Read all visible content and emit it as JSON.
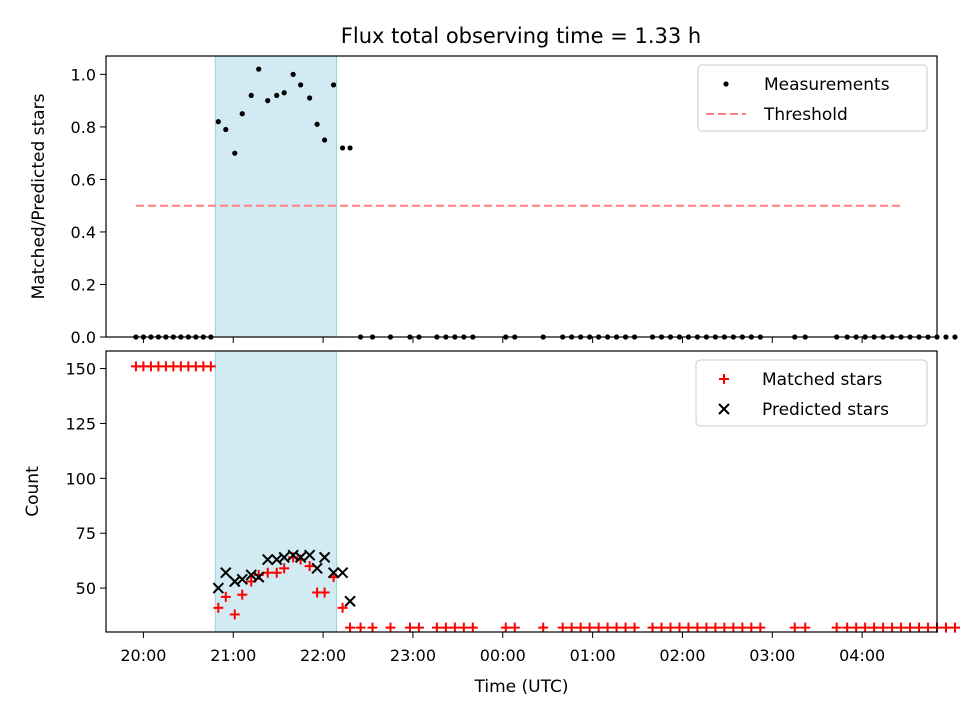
{
  "chart_data": [
    {
      "type": "scatter",
      "title": "Flux total observing time = 1.33 h",
      "xlabel": "",
      "ylabel": "Matched/Predicted stars",
      "ylim": [
        0,
        1.07
      ],
      "xlim": [
        "19:35",
        "04:50"
      ],
      "yticks": [
        "0.0",
        "0.2",
        "0.4",
        "0.6",
        "0.8",
        "1.0"
      ],
      "ytick_values": [
        0,
        0.2,
        0.4,
        0.6,
        0.8,
        1.0
      ],
      "grid": false,
      "legend_position": "top-right",
      "shaded_interval": [
        "20:48",
        "22:09"
      ],
      "shade_color": "#add8e6",
      "series": [
        {
          "name": "Measurements",
          "color": "#000000",
          "marker": "dot",
          "points": [
            [
              "19:55",
              0
            ],
            [
              "20:00",
              0
            ],
            [
              "20:05",
              0
            ],
            [
              "20:10",
              0
            ],
            [
              "20:15",
              0
            ],
            [
              "20:20",
              0
            ],
            [
              "20:25",
              0
            ],
            [
              "20:30",
              0
            ],
            [
              "20:35",
              0
            ],
            [
              "20:40",
              0
            ],
            [
              "20:45",
              0
            ],
            [
              "20:50",
              0.82
            ],
            [
              "20:55",
              0.79
            ],
            [
              "21:01",
              0.7
            ],
            [
              "21:06",
              0.85
            ],
            [
              "21:12",
              0.92
            ],
            [
              "21:17",
              1.02
            ],
            [
              "21:23",
              0.9
            ],
            [
              "21:29",
              0.92
            ],
            [
              "21:34",
              0.93
            ],
            [
              "21:40",
              1.0
            ],
            [
              "21:45",
              0.96
            ],
            [
              "21:51",
              0.91
            ],
            [
              "21:56",
              0.81
            ],
            [
              "22:01",
              0.75
            ],
            [
              "22:07",
              0.96
            ],
            [
              "22:13",
              0.72
            ],
            [
              "22:18",
              0.72
            ],
            [
              "22:25",
              0
            ],
            [
              "22:33",
              0
            ],
            [
              "22:45",
              0
            ],
            [
              "22:58",
              0
            ],
            [
              "23:04",
              0
            ],
            [
              "23:16",
              0
            ],
            [
              "23:22",
              0
            ],
            [
              "23:28",
              0
            ],
            [
              "23:34",
              0
            ],
            [
              "23:40",
              0
            ],
            [
              "24:02",
              0
            ],
            [
              "24:08",
              0
            ],
            [
              "24:27",
              0
            ],
            [
              "24:40",
              0
            ],
            [
              "24:46",
              0
            ],
            [
              "24:52",
              0
            ],
            [
              "24:58",
              0
            ],
            [
              "25:04",
              0
            ],
            [
              "25:10",
              0
            ],
            [
              "25:16",
              0
            ],
            [
              "25:22",
              0
            ],
            [
              "25:28",
              0
            ],
            [
              "25:40",
              0
            ],
            [
              "25:46",
              0
            ],
            [
              "25:52",
              0
            ],
            [
              "25:58",
              0
            ],
            [
              "26:04",
              0
            ],
            [
              "26:10",
              0
            ],
            [
              "26:16",
              0
            ],
            [
              "26:22",
              0
            ],
            [
              "26:28",
              0
            ],
            [
              "26:34",
              0
            ],
            [
              "26:40",
              0
            ],
            [
              "26:46",
              0
            ],
            [
              "26:52",
              0
            ],
            [
              "27:15",
              0
            ],
            [
              "27:22",
              0
            ],
            [
              "27:43",
              0
            ],
            [
              "27:50",
              0
            ],
            [
              "27:56",
              0
            ],
            [
              "28:02",
              0
            ],
            [
              "28:08",
              0
            ],
            [
              "28:14",
              0
            ],
            [
              "28:20",
              0
            ],
            [
              "28:26",
              0
            ],
            [
              "28:32",
              0
            ],
            [
              "28:38",
              0
            ],
            [
              "28:44",
              0
            ],
            [
              "28:50",
              0
            ],
            [
              "28:56",
              0
            ],
            [
              "29:02",
              0
            ],
            [
              "29:08",
              0
            ],
            [
              "29:14",
              0
            ],
            [
              "29:20",
              0
            ],
            [
              "29:26",
              0
            ],
            [
              "29:32",
              0
            ],
            [
              "29:38",
              0
            ],
            [
              "29:44",
              0
            ],
            [
              "29:50",
              0
            ],
            [
              "29:56",
              0
            ],
            [
              "30:03",
              0
            ],
            [
              "30:09",
              0
            ],
            [
              "30:15",
              0
            ],
            [
              "30:21",
              0
            ],
            [
              "30:27",
              0
            ]
          ]
        },
        {
          "name": "Threshold",
          "color": "#ff7f7f",
          "style": "dashed",
          "points": [
            [
              "19:55",
              0.5
            ],
            [
              "28:26",
              0.5
            ]
          ]
        }
      ]
    },
    {
      "type": "scatter",
      "title": "",
      "xlabel": "Time (UTC)",
      "ylabel": "Count",
      "ylim": [
        30,
        158
      ],
      "xlim": [
        "19:35",
        "04:50"
      ],
      "yticks": [
        "50",
        "75",
        "100",
        "125",
        "150"
      ],
      "ytick_values": [
        50,
        75,
        100,
        125,
        150
      ],
      "xticks": [
        "20:00",
        "21:00",
        "22:00",
        "23:00",
        "00:00",
        "01:00",
        "02:00",
        "03:00",
        "04:00"
      ],
      "xtick_values": [
        "20:00",
        "21:00",
        "22:00",
        "23:00",
        "24:00",
        "25:00",
        "26:00",
        "27:00",
        "28:00"
      ],
      "grid": false,
      "legend_position": "top-right",
      "shaded_interval": [
        "20:48",
        "22:09"
      ],
      "series": [
        {
          "name": "Matched stars",
          "color": "#ff0000",
          "marker": "plus",
          "points": [
            [
              "19:55",
              151
            ],
            [
              "20:00",
              151
            ],
            [
              "20:05",
              151
            ],
            [
              "20:10",
              151
            ],
            [
              "20:15",
              151
            ],
            [
              "20:20",
              151
            ],
            [
              "20:25",
              151
            ],
            [
              "20:30",
              151
            ],
            [
              "20:35",
              151
            ],
            [
              "20:40",
              151
            ],
            [
              "20:45",
              151
            ],
            [
              "20:50",
              41
            ],
            [
              "20:55",
              46
            ],
            [
              "21:01",
              38
            ],
            [
              "21:06",
              47
            ],
            [
              "21:12",
              53
            ],
            [
              "21:17",
              56
            ],
            [
              "21:23",
              57
            ],
            [
              "21:29",
              57
            ],
            [
              "21:34",
              59
            ],
            [
              "21:40",
              64
            ],
            [
              "21:45",
              63
            ],
            [
              "21:51",
              60
            ],
            [
              "21:56",
              48
            ],
            [
              "22:01",
              48
            ],
            [
              "22:07",
              55
            ],
            [
              "22:13",
              41
            ],
            [
              "22:18",
              32
            ],
            [
              "22:25",
              32
            ],
            [
              "22:33",
              32
            ],
            [
              "22:45",
              32
            ],
            [
              "22:58",
              32
            ],
            [
              "23:04",
              32
            ],
            [
              "23:16",
              32
            ],
            [
              "23:22",
              32
            ],
            [
              "23:28",
              32
            ],
            [
              "23:34",
              32
            ],
            [
              "23:40",
              32
            ],
            [
              "24:02",
              32
            ],
            [
              "24:08",
              32
            ],
            [
              "24:27",
              32
            ],
            [
              "24:40",
              32
            ],
            [
              "24:46",
              32
            ],
            [
              "24:52",
              32
            ],
            [
              "24:58",
              32
            ],
            [
              "25:04",
              32
            ],
            [
              "25:10",
              32
            ],
            [
              "25:16",
              32
            ],
            [
              "25:22",
              32
            ],
            [
              "25:28",
              32
            ],
            [
              "25:40",
              32
            ],
            [
              "25:46",
              32
            ],
            [
              "25:52",
              32
            ],
            [
              "25:58",
              32
            ],
            [
              "26:04",
              32
            ],
            [
              "26:10",
              32
            ],
            [
              "26:16",
              32
            ],
            [
              "26:22",
              32
            ],
            [
              "26:28",
              32
            ],
            [
              "26:34",
              32
            ],
            [
              "26:40",
              32
            ],
            [
              "26:46",
              32
            ],
            [
              "26:52",
              32
            ],
            [
              "27:15",
              32
            ],
            [
              "27:22",
              32
            ],
            [
              "27:43",
              32
            ],
            [
              "27:50",
              32
            ],
            [
              "27:56",
              32
            ],
            [
              "28:02",
              32
            ],
            [
              "28:08",
              32
            ],
            [
              "28:14",
              32
            ],
            [
              "28:20",
              32
            ],
            [
              "28:26",
              32
            ],
            [
              "28:32",
              32
            ],
            [
              "28:38",
              32
            ],
            [
              "28:44",
              32
            ],
            [
              "28:50",
              32
            ],
            [
              "28:56",
              32
            ],
            [
              "29:02",
              32
            ],
            [
              "29:08",
              32
            ],
            [
              "29:14",
              32
            ],
            [
              "29:20",
              32
            ],
            [
              "29:26",
              32
            ],
            [
              "29:32",
              32
            ],
            [
              "29:38",
              32
            ],
            [
              "29:44",
              32
            ],
            [
              "29:50",
              32
            ],
            [
              "29:56",
              32
            ],
            [
              "30:03",
              32
            ],
            [
              "30:09",
              32
            ],
            [
              "30:15",
              32
            ],
            [
              "30:21",
              32
            ],
            [
              "30:27",
              32
            ]
          ]
        },
        {
          "name": "Predicted stars",
          "color": "#000000",
          "marker": "x",
          "points": [
            [
              "20:50",
              50
            ],
            [
              "20:55",
              57
            ],
            [
              "21:01",
              53
            ],
            [
              "21:06",
              54
            ],
            [
              "21:12",
              56
            ],
            [
              "21:17",
              55
            ],
            [
              "21:23",
              63
            ],
            [
              "21:29",
              63
            ],
            [
              "21:34",
              64
            ],
            [
              "21:40",
              65
            ],
            [
              "21:45",
              64
            ],
            [
              "21:51",
              65
            ],
            [
              "21:56",
              59
            ],
            [
              "22:01",
              64
            ],
            [
              "22:07",
              57
            ],
            [
              "22:13",
              57
            ],
            [
              "22:18",
              44
            ]
          ]
        }
      ]
    }
  ]
}
